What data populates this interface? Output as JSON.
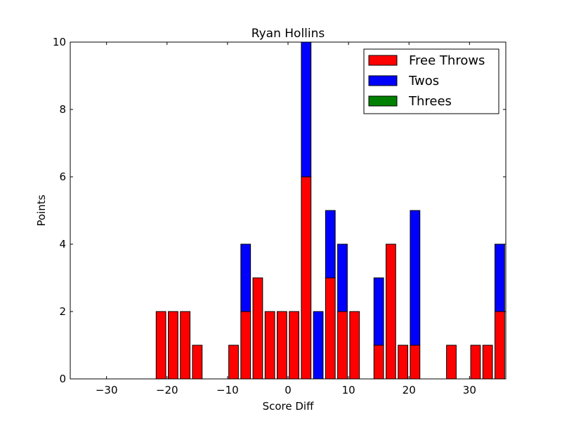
{
  "chart_data": {
    "type": "bar",
    "stacked": true,
    "title": "Ryan Hollins",
    "xlabel": "Score Diff",
    "ylabel": "Points",
    "xlim": [
      -36,
      36
    ],
    "ylim": [
      0,
      10
    ],
    "xticks": [
      -30,
      -20,
      -10,
      0,
      10,
      20,
      30
    ],
    "yticks": [
      0,
      2,
      4,
      6,
      8,
      10
    ],
    "xtick_labels": [
      "−30",
      "−20",
      "−10",
      "0",
      "10",
      "20",
      "30"
    ],
    "ytick_labels": [
      "0",
      "2",
      "4",
      "6",
      "8",
      "10"
    ],
    "legend_position": "top-right",
    "grid": false,
    "bar_width": 1.6,
    "x": [
      -35,
      -33,
      -31,
      -29,
      -27,
      -25,
      -23,
      -21,
      -19,
      -17,
      -15,
      -13,
      -11,
      -9,
      -7,
      -5,
      -3,
      -1,
      1,
      3,
      5,
      7,
      9,
      11,
      13,
      15,
      17,
      19,
      21,
      23,
      25,
      27,
      29,
      31,
      33,
      35
    ],
    "series": [
      {
        "name": "Free Throws",
        "color": "#ff0000",
        "values": [
          0,
          0,
          0,
          0,
          0,
          0,
          0,
          2,
          2,
          2,
          1,
          0,
          0,
          1,
          2,
          3,
          2,
          2,
          2,
          6,
          0,
          3,
          2,
          2,
          0,
          1,
          4,
          1,
          1,
          0,
          0,
          1,
          0,
          1,
          1,
          2
        ]
      },
      {
        "name": "Twos",
        "color": "#0000ff",
        "values": [
          0,
          0,
          0,
          0,
          0,
          0,
          0,
          0,
          0,
          0,
          0,
          0,
          0,
          0,
          2,
          0,
          0,
          0,
          0,
          4,
          2,
          2,
          2,
          0,
          0,
          2,
          0,
          0,
          4,
          0,
          0,
          0,
          0,
          0,
          0,
          2
        ]
      },
      {
        "name": "Threes",
        "color": "#008000",
        "values": [
          0,
          0,
          0,
          0,
          0,
          0,
          0,
          0,
          0,
          0,
          0,
          0,
          0,
          0,
          0,
          0,
          0,
          0,
          0,
          0,
          0,
          0,
          0,
          0,
          0,
          0,
          0,
          0,
          0,
          0,
          0,
          0,
          0,
          0,
          0,
          0
        ]
      }
    ]
  }
}
